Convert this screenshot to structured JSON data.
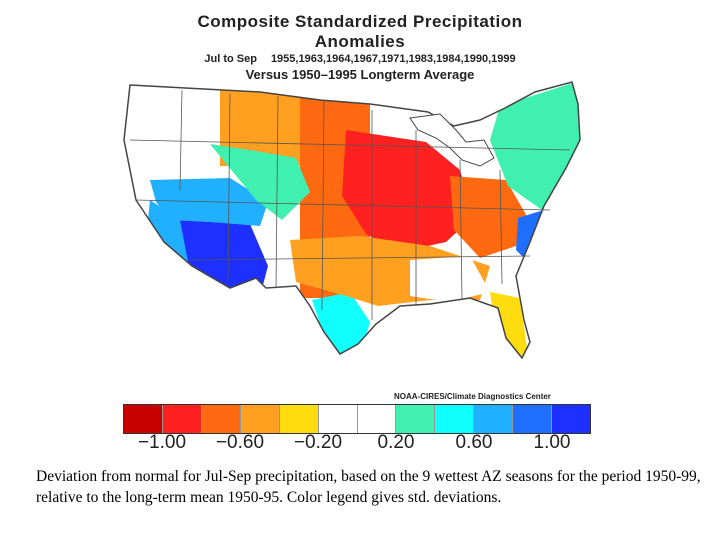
{
  "title": {
    "main": "Composite Standardized Precipitation Anomalies",
    "season": "Jul to Sep",
    "years": "1955,1963,1964,1967,1971,1983,1984,1990,1999",
    "reference": "Versus 1950–1995 Longterm Average"
  },
  "credit": "NOAA-CIRES/Climate Diagnostics Center",
  "legend": {
    "colors": [
      "#c80000",
      "#ff2020",
      "#ff6a10",
      "#ffa020",
      "#ffdc10",
      "#ffffff",
      "#ffffff",
      "#40f0b0",
      "#10ffff",
      "#20b0ff",
      "#1e6eff",
      "#1e30ff"
    ],
    "labels": [
      "−1.00",
      "−0.60",
      "−0.20",
      "0.20",
      "0.60",
      "1.00"
    ]
  },
  "caption": "Deviation from normal for Jul-Sep precipitation, based on the 9 wettest AZ seasons for the period 1950-99, relative to the long-term mean 1950-95.  Color legend gives std. deviations.",
  "map": {
    "regions": [
      {
        "name": "northwest",
        "color": "#ffffff"
      },
      {
        "name": "northern-plains-west",
        "color": "#ffa020"
      },
      {
        "name": "northern-plains-east",
        "color": "#ff6a10"
      },
      {
        "name": "midwest-core",
        "color": "#ff2020"
      },
      {
        "name": "southwest-desert",
        "color": "#1e30ff"
      },
      {
        "name": "great-basin",
        "color": "#20b0ff"
      },
      {
        "name": "california-south",
        "color": "#20b0ff"
      },
      {
        "name": "rockies",
        "color": "#40f0b0"
      },
      {
        "name": "south-texas",
        "color": "#10ffff"
      },
      {
        "name": "gulf-coast",
        "color": "#ffa020"
      },
      {
        "name": "appalachians",
        "color": "#ff6a10"
      },
      {
        "name": "carolina-coast",
        "color": "#1e6eff"
      },
      {
        "name": "northeast",
        "color": "#40f0b0"
      },
      {
        "name": "florida",
        "color": "#ffdc10"
      },
      {
        "name": "southeast",
        "color": "#ffffff"
      }
    ]
  }
}
